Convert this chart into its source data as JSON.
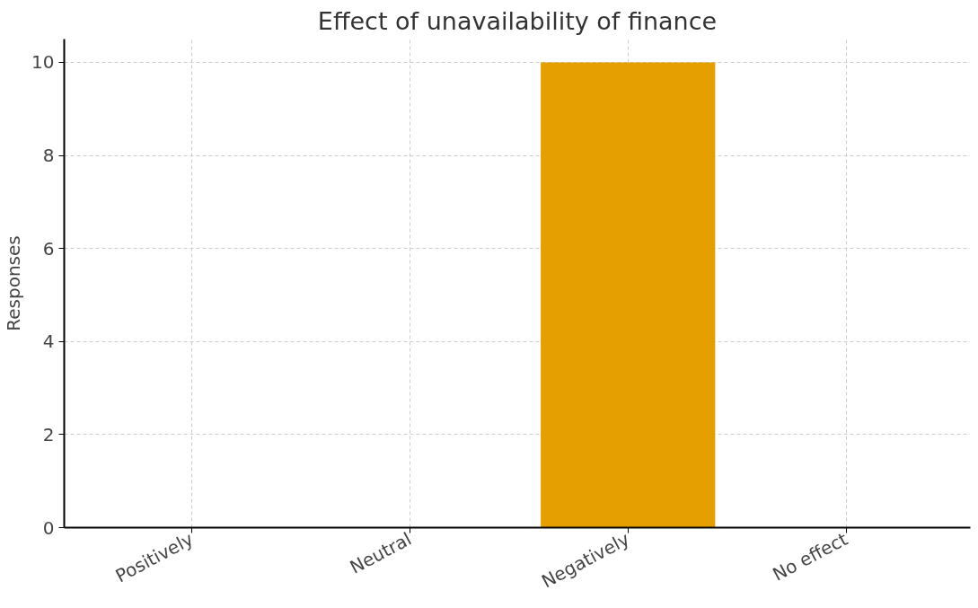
{
  "chart_data": {
    "type": "bar",
    "title": "Effect of unavailability of finance",
    "ylabel": "Responses",
    "categories": [
      "Positively",
      "Neutral",
      "Negatively",
      "No effect"
    ],
    "values": [
      0,
      0,
      10,
      0
    ],
    "color": "#e5a000",
    "ylim": [
      0,
      10.5
    ],
    "yticks": [
      0,
      2,
      4,
      6,
      8,
      10
    ],
    "grid": true
  }
}
